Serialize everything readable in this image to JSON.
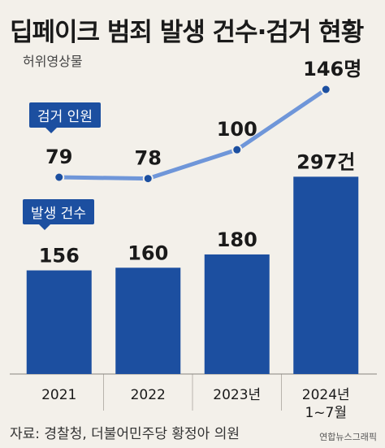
{
  "title": "딥페이크 범죄 발생 건수·검거 현황",
  "subtitle": "허위영상물",
  "source": "자료: 경찰청, 더불어민주당 황정아 의원",
  "credit": "연합뉴스그래픽",
  "badges": {
    "arrests": "검거 인원",
    "cases": "발생 건수"
  },
  "colors": {
    "bar": "#1c4fa0",
    "line": "#6f96d9",
    "badge": "#1c4fa0",
    "background": "#f3f0ea"
  },
  "chart_data": {
    "type": "bar+line",
    "categories": [
      "2021",
      "2022",
      "2023년",
      "2024년\n1~7월"
    ],
    "series": [
      {
        "name": "발생 건수",
        "kind": "bar",
        "values": [
          156,
          160,
          180,
          297
        ],
        "labels": [
          "156",
          "160",
          "180",
          "297건"
        ]
      },
      {
        "name": "검거 인원",
        "kind": "line",
        "values": [
          79,
          78,
          100,
          146
        ],
        "labels": [
          "79",
          "78",
          "100",
          "146명"
        ]
      }
    ]
  }
}
